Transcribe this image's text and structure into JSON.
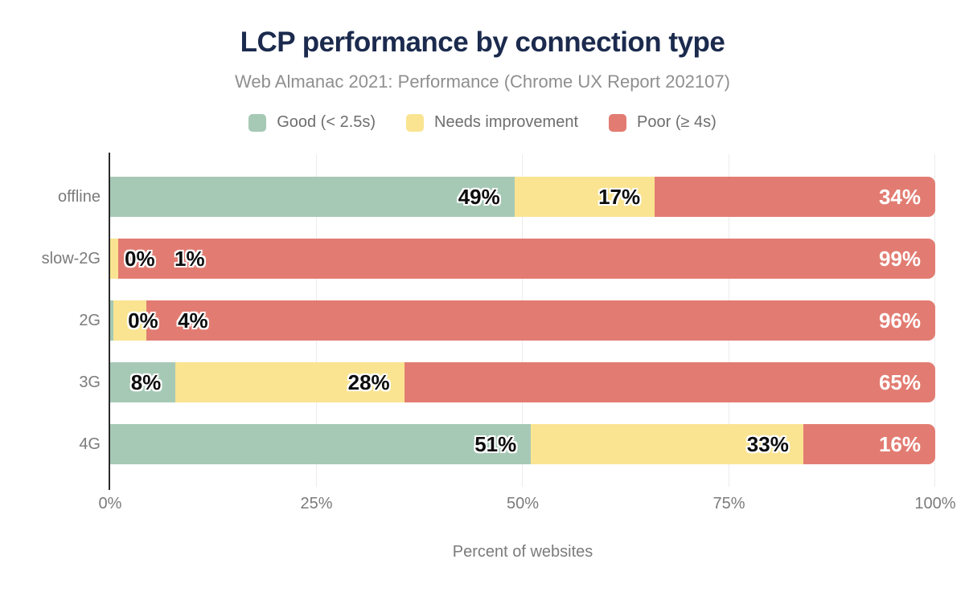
{
  "header": {
    "title": "LCP performance by connection type",
    "subtitle": "Web Almanac 2021: Performance (Chrome UX Report 202107)"
  },
  "colors": {
    "good": "#a6c9b6",
    "needs_improvement": "#fae491",
    "poor": "#e27c72",
    "title_text": "#1b2a4d",
    "axis_text": "#7b7b7b",
    "gridline": "#ececec",
    "axis_line": "#2a2a2a"
  },
  "chart_data": {
    "type": "bar",
    "orientation": "horizontal",
    "stacked": true,
    "title": "LCP performance by connection type",
    "subtitle": "Web Almanac 2021: Performance (Chrome UX Report 202107)",
    "categories": [
      "offline",
      "slow-2G",
      "2G",
      "3G",
      "4G"
    ],
    "series": [
      {
        "key": "good",
        "name": "Good (< 2.5s)",
        "color": "#a6c9b6",
        "values": [
          49,
          0,
          0,
          8,
          51
        ],
        "render_values": [
          49,
          0,
          0.4,
          8,
          51
        ]
      },
      {
        "key": "needs-improvement",
        "name": "Needs improvement",
        "color": "#fae491",
        "values": [
          17,
          1,
          4,
          28,
          33
        ],
        "render_values": [
          17,
          1,
          4,
          28,
          33
        ]
      },
      {
        "key": "poor",
        "name": "Poor (≥ 4s)",
        "color": "#e27c72",
        "values": [
          34,
          99,
          96,
          65,
          16
        ],
        "render_values": [
          34,
          99,
          95.6,
          65,
          16
        ]
      }
    ],
    "value_suffix": "%",
    "xlabel": "Percent of websites",
    "x_ticks": [
      "0%",
      "25%",
      "50%",
      "75%",
      "100%"
    ],
    "xlim": [
      0,
      100
    ],
    "grid": "vertical",
    "legend_position": "top"
  }
}
